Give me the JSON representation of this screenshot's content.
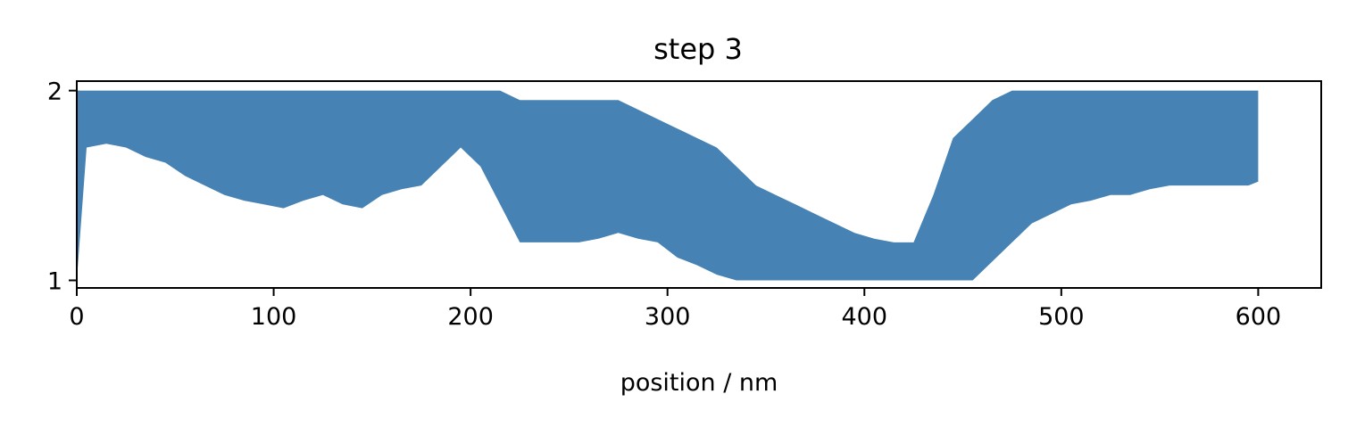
{
  "chart_data": {
    "type": "area",
    "title": "step 3",
    "xlabel": "position / nm",
    "ylabel": "",
    "xlim": [
      0,
      632
    ],
    "ylim": [
      0.96,
      2.05
    ],
    "xticks": [
      0,
      100,
      200,
      300,
      400,
      500,
      600
    ],
    "yticks": [
      1,
      2
    ],
    "grid": false,
    "series": [
      {
        "color": "#4682b4",
        "baseline": 2.0,
        "x": [
          0,
          5,
          15,
          25,
          35,
          45,
          55,
          65,
          75,
          85,
          95,
          105,
          115,
          125,
          135,
          145,
          155,
          165,
          175,
          185,
          195,
          205,
          215,
          225,
          235,
          245,
          255,
          265,
          275,
          285,
          295,
          305,
          315,
          325,
          335,
          345,
          355,
          365,
          375,
          385,
          395,
          405,
          415,
          425,
          435,
          445,
          455,
          465,
          475,
          485,
          495,
          505,
          515,
          525,
          535,
          545,
          555,
          565,
          575,
          585,
          595,
          600
        ],
        "upper": [
          2.0,
          2.0,
          2.0,
          2.0,
          2.0,
          2.0,
          2.0,
          2.0,
          2.0,
          2.0,
          2.0,
          2.0,
          2.0,
          2.0,
          2.0,
          2.0,
          2.0,
          2.0,
          2.0,
          2.0,
          2.0,
          2.0,
          2.0,
          1.95,
          1.95,
          1.95,
          1.95,
          1.95,
          1.95,
          1.9,
          1.85,
          1.8,
          1.75,
          1.7,
          1.6,
          1.5,
          1.45,
          1.4,
          1.35,
          1.3,
          1.25,
          1.22,
          1.2,
          1.2,
          1.45,
          1.75,
          1.85,
          1.95,
          2.0,
          2.0,
          2.0,
          2.0,
          2.0,
          2.0,
          2.0,
          2.0,
          2.0,
          2.0,
          2.0,
          2.0,
          2.0,
          2.0
        ],
        "lower": [
          1.0,
          1.7,
          1.72,
          1.7,
          1.65,
          1.62,
          1.55,
          1.5,
          1.45,
          1.42,
          1.4,
          1.38,
          1.42,
          1.45,
          1.4,
          1.38,
          1.45,
          1.48,
          1.5,
          1.6,
          1.7,
          1.6,
          1.4,
          1.2,
          1.2,
          1.2,
          1.2,
          1.22,
          1.25,
          1.22,
          1.2,
          1.12,
          1.08,
          1.03,
          1.0,
          1.0,
          1.0,
          1.0,
          1.0,
          1.0,
          1.0,
          1.0,
          1.0,
          1.0,
          1.0,
          1.0,
          1.0,
          1.1,
          1.2,
          1.3,
          1.35,
          1.4,
          1.42,
          1.45,
          1.45,
          1.48,
          1.5,
          1.5,
          1.5,
          1.5,
          1.5,
          1.52
        ]
      }
    ]
  }
}
